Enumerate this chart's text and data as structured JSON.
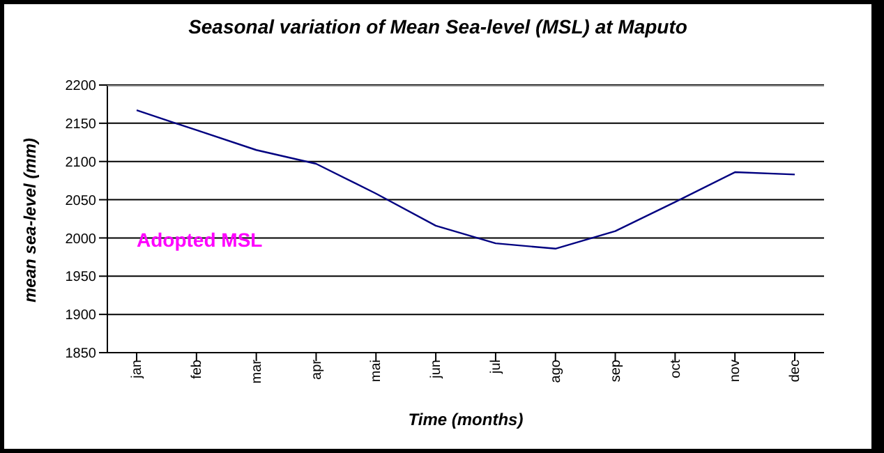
{
  "chart_data": {
    "type": "line",
    "title": "Seasonal variation of Mean Sea-level (MSL) at Maputo",
    "xlabel": "Time (months)",
    "ylabel": "mean sea-level (mm)",
    "categories": [
      "jan",
      "feb",
      "mar",
      "apr",
      "mai",
      "jun",
      "jul",
      "ago",
      "sep",
      "oct",
      "nov",
      "dec"
    ],
    "series": [
      {
        "color": "#000080",
        "values": [
          2167,
          2141,
          2115,
          2097,
          2058,
          2016,
          1993,
          1986,
          2009,
          2047,
          2086,
          2083
        ]
      }
    ],
    "ylim": [
      1850,
      2200
    ],
    "yticks": [
      1850,
      1900,
      1950,
      2000,
      2050,
      2100,
      2150,
      2200
    ],
    "grid": "y",
    "legend": false,
    "marker": "none",
    "line_style": "solid",
    "annotations": [
      "Adopted MSL"
    ]
  }
}
